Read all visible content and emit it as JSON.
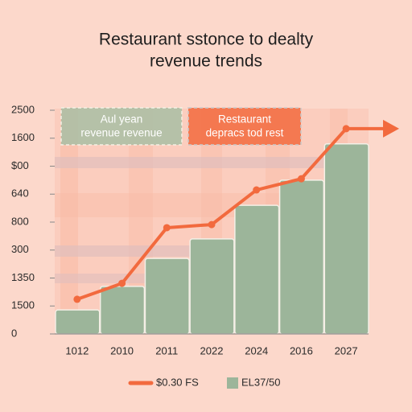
{
  "chart_data": {
    "type": "bar",
    "title": [
      "Restaurant sstonce to dealty",
      "revenue trends"
    ],
    "categories": [
      "1012",
      "2010",
      "2011",
      "2022",
      "2024",
      "2016",
      "2027"
    ],
    "series": [
      {
        "name": "EL37/50",
        "color": "#9cb59a",
        "values": [
          0.86,
          1.7,
          2.7,
          3.4,
          4.6,
          5.5,
          6.8
        ]
      },
      {
        "name": "$0.30 FS",
        "color": "#f26a3e",
        "type": "line",
        "values": [
          1.24,
          1.81,
          3.8,
          3.91,
          5.15,
          5.55,
          7.34
        ]
      }
    ],
    "ylim": [
      0,
      8
    ],
    "yticks": [
      {
        "value": 0,
        "label": "0"
      },
      {
        "value": 1,
        "label": "1500"
      },
      {
        "value": 2,
        "label": "1350"
      },
      {
        "value": 3,
        "label": "300"
      },
      {
        "value": 4,
        "label": "800"
      },
      {
        "value": 5,
        "label": "640"
      },
      {
        "value": 6,
        "label": "$00"
      },
      {
        "value": 7,
        "label": "1600"
      },
      {
        "value": 8,
        "label": "2500"
      }
    ],
    "annotations": [
      {
        "lines": [
          "Aul yean",
          "revenue revenue"
        ],
        "color": "#9cb59a"
      },
      {
        "lines": [
          "Restaurant",
          "depracs tod rest"
        ],
        "color": "#f26a3e"
      }
    ],
    "legend": "bottom"
  }
}
